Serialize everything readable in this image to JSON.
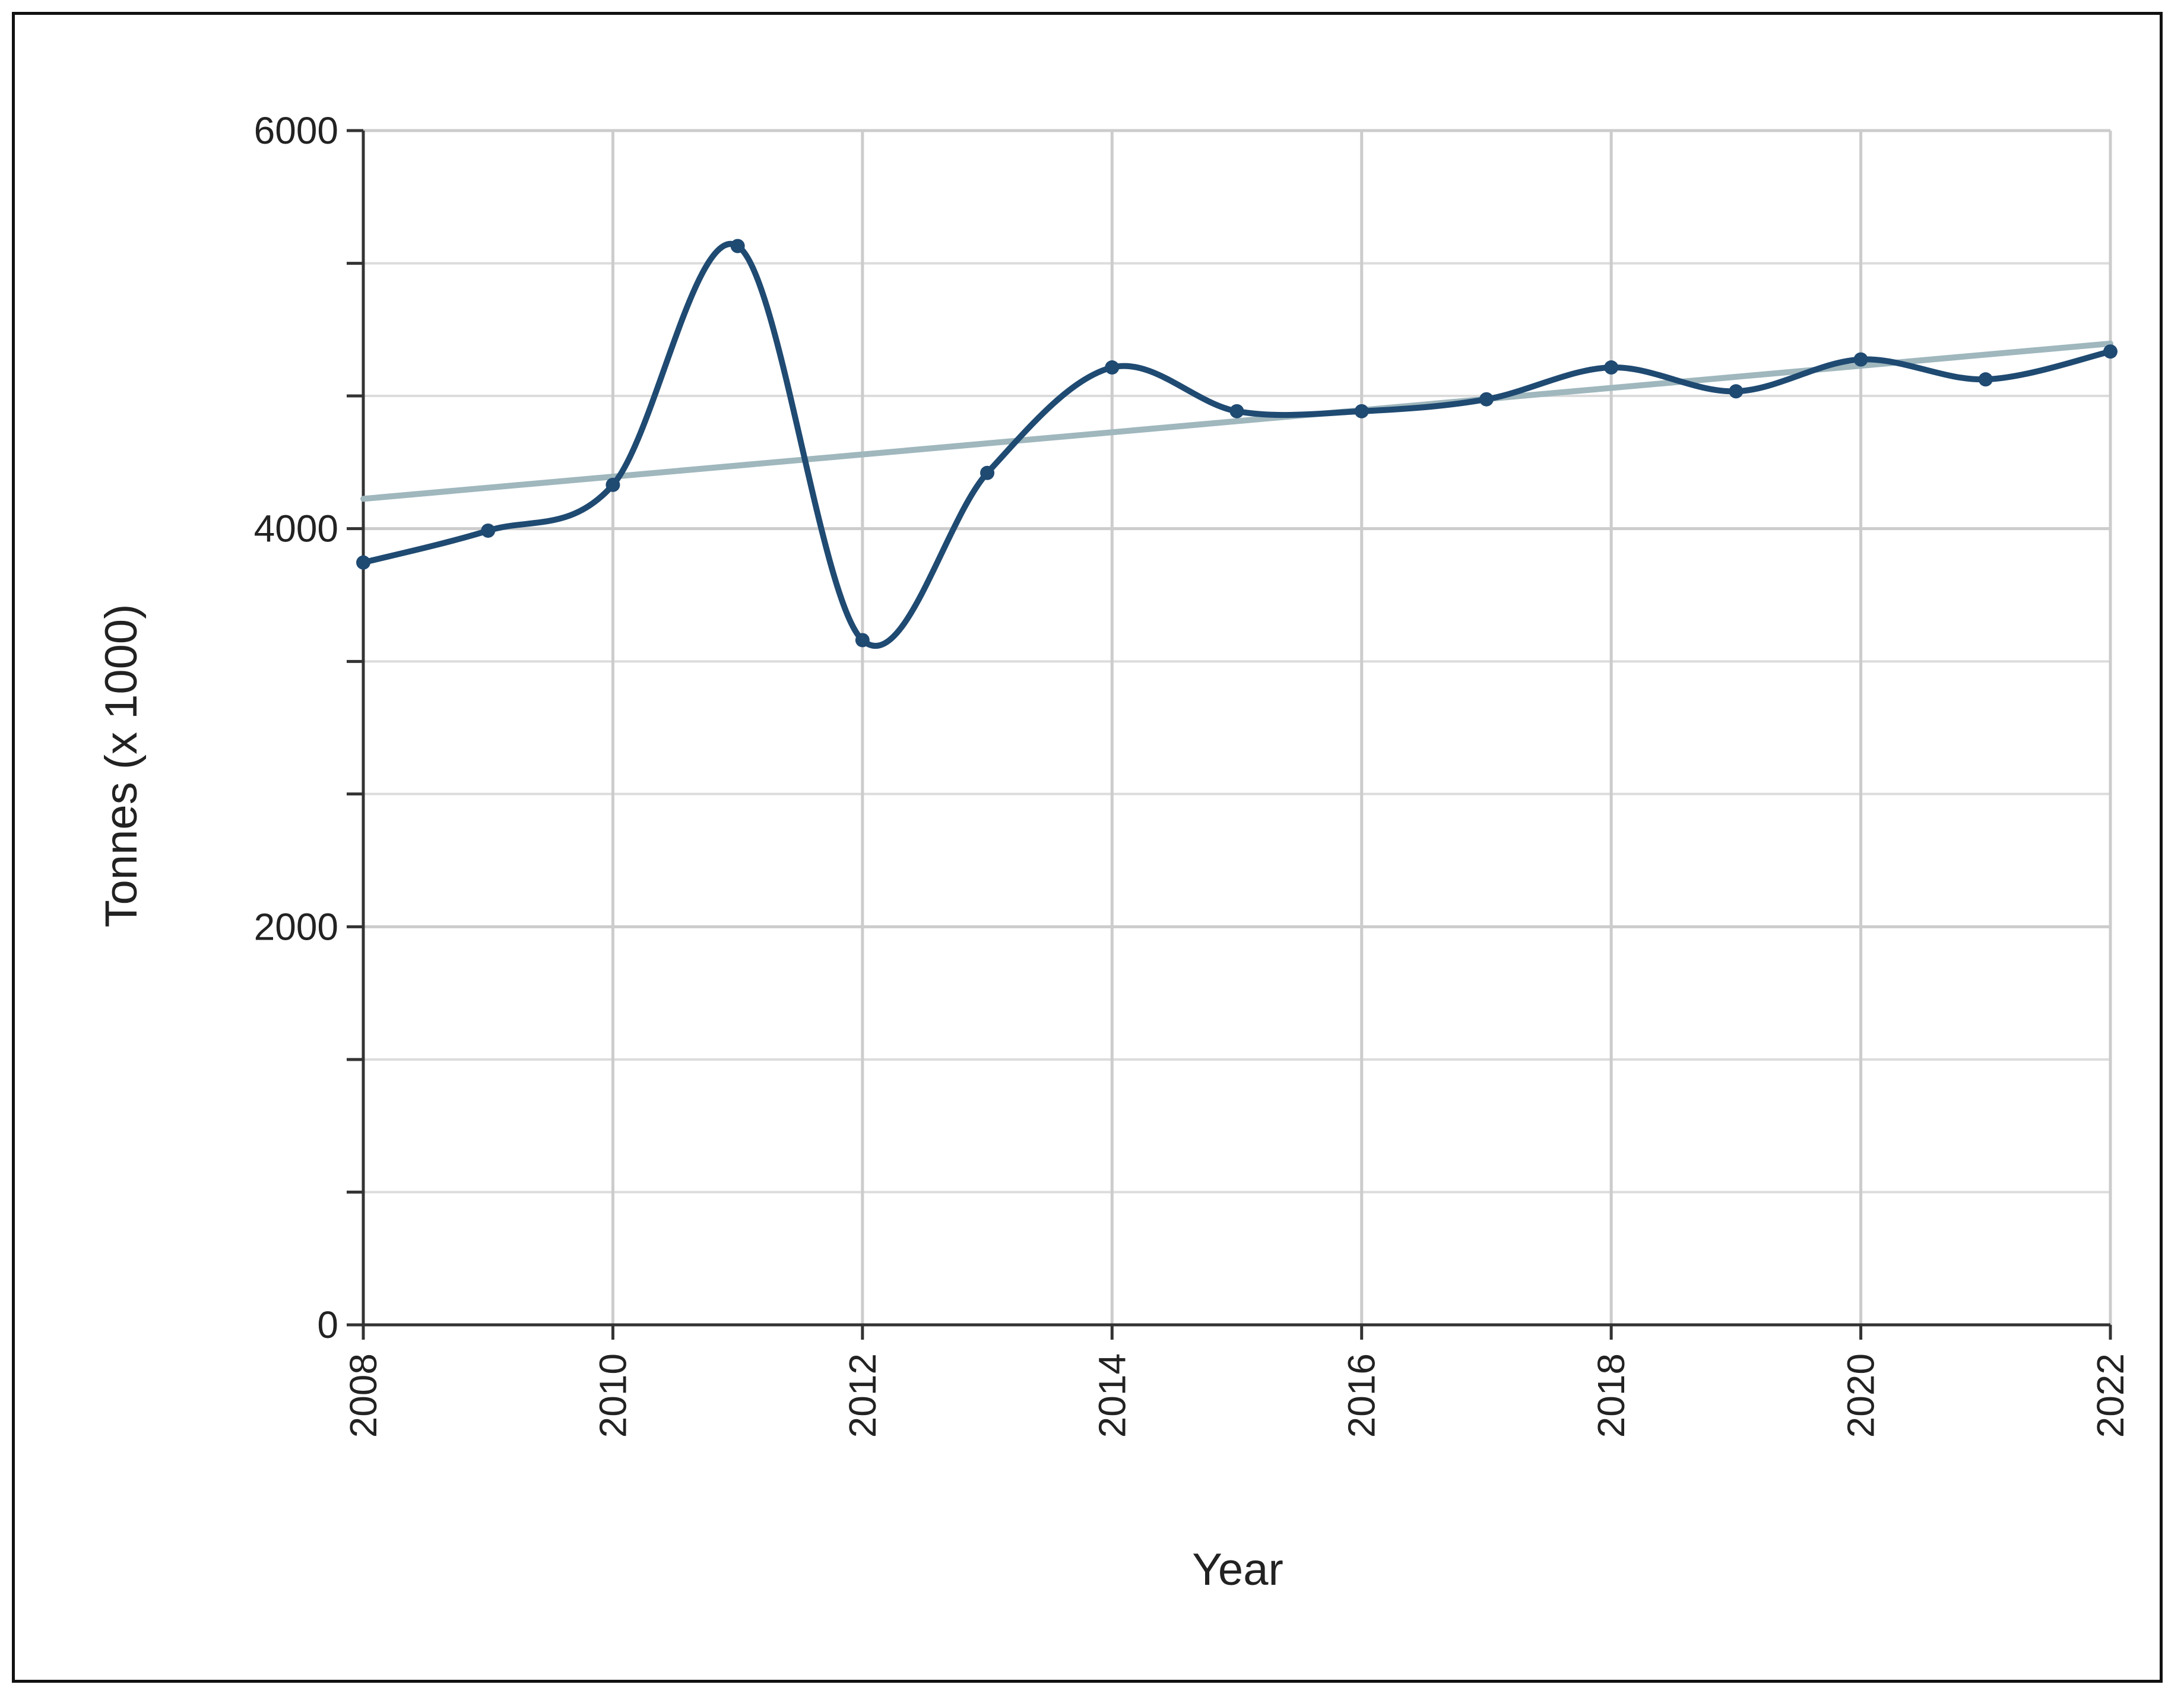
{
  "chart_data": {
    "type": "line",
    "title": "",
    "xlabel": "Year",
    "ylabel": "Tonnes (x 1000)",
    "x": [
      2008,
      2009,
      2010,
      2011,
      2012,
      2013,
      2014,
      2015,
      2016,
      2017,
      2018,
      2019,
      2020,
      2021,
      2022
    ],
    "xlim": [
      2008,
      2022
    ],
    "ylim": [
      0,
      6000
    ],
    "x_tick_labels": [
      "2008",
      "2010",
      "2012",
      "2014",
      "2016",
      "2018",
      "2020",
      "2022"
    ],
    "y_tick_labels": [
      "0",
      "2000",
      "4000",
      "6000"
    ],
    "x_ticks": [
      2008,
      2010,
      2012,
      2014,
      2016,
      2018,
      2020,
      2022
    ],
    "y_ticks": [
      0,
      2000,
      4000,
      6000
    ],
    "y_minor_gridlines": [
      667,
      1333,
      2667,
      3333,
      4667,
      5333
    ],
    "grid": true,
    "legend": "none",
    "series": [
      {
        "values": [
          3830,
          3990,
          4220,
          5420,
          3440,
          4280,
          4810,
          4590,
          4590,
          4650,
          4810,
          4690,
          4850,
          4750,
          4890
        ],
        "color": "#1f4a72",
        "marker": "dot",
        "smooth": true
      },
      {
        "kind": "trendline",
        "values": [
          4150,
          4930
        ],
        "x": [
          2008,
          2022
        ],
        "color": "#9fb7bd"
      }
    ]
  }
}
